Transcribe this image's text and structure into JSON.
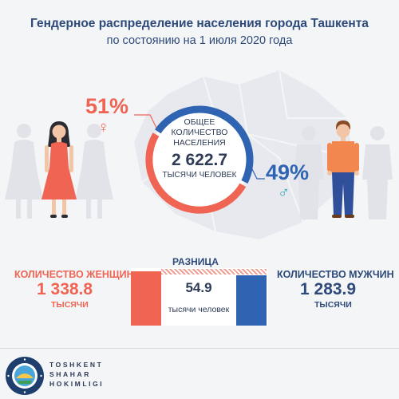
{
  "header": {
    "title": "Гендерное распределение населения города Ташкента",
    "subtitle": "по состоянию на 1 июля 2020 года"
  },
  "women": {
    "percent": "51%",
    "symbol": "♀",
    "label": "КОЛИЧЕСТВО ЖЕНЩИН",
    "value": "1 338.8",
    "unit": "ТЫСЯЧИ"
  },
  "men": {
    "percent": "49%",
    "symbol": "♂",
    "label": "КОЛИЧЕСТВО МУЖЧИН",
    "value": "1 283.9",
    "unit": "ТЫСЯЧИ"
  },
  "total": {
    "line1": "ОБЩЕЕ",
    "line2": "КОЛИЧЕСТВО",
    "line3": "НАСЕЛЕНИЯ",
    "value": "2 622.7",
    "unit": "ТЫСЯЧИ ЧЕЛОВЕК"
  },
  "difference": {
    "label": "РАЗНИЦА",
    "value": "54.9",
    "unit": "тысячи человек"
  },
  "logo": {
    "line1": "TOSHKENT",
    "line2": "SHAHAR",
    "line3": "HOKIMLIGI",
    "ring_text": "TOSHKENT SHAHAR HOKIMLIGI"
  },
  "colors": {
    "women": "#ef6453",
    "men": "#2f64b3",
    "navy": "#2d4a7a"
  },
  "ring_share": {
    "women": 0.51,
    "men": 0.49
  }
}
